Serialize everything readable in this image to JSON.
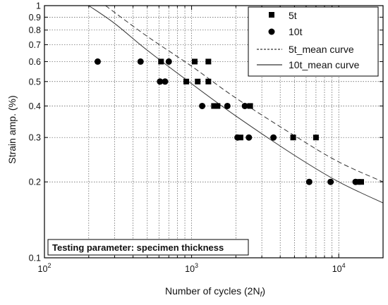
{
  "chart_data": {
    "type": "scatter",
    "xlabel": "Number of cycles (2N",
    "xlabel_sub": "f",
    "xlabel_close": ")",
    "ylabel": "Strain amp. (%)",
    "x_scale": "log",
    "y_scale": "log",
    "xlim": [
      100,
      20000
    ],
    "ylim": [
      0.1,
      1
    ],
    "grid": true,
    "legend_position": "top-right",
    "x_ticks": [
      {
        "value": 100,
        "base": "10",
        "exp": "2"
      },
      {
        "value": 1000,
        "base": "10",
        "exp": "3"
      },
      {
        "value": 10000,
        "base": "10",
        "exp": "4"
      }
    ],
    "y_ticks": [
      {
        "value": 0.1,
        "label": "0.1"
      },
      {
        "value": 0.2,
        "label": "0.2"
      },
      {
        "value": 0.3,
        "label": "0.3"
      },
      {
        "value": 0.4,
        "label": "0.4"
      },
      {
        "value": 0.5,
        "label": "0.5"
      },
      {
        "value": 0.6,
        "label": "0.6"
      },
      {
        "value": 0.7,
        "label": "0.7"
      },
      {
        "value": 0.8,
        "label": "0.8"
      },
      {
        "value": 0.9,
        "label": "0.9"
      },
      {
        "value": 1,
        "label": "1"
      }
    ],
    "series": [
      {
        "name": "5t",
        "marker": "square",
        "points": [
          {
            "x": 620,
            "y": 0.6
          },
          {
            "x": 1050,
            "y": 0.6
          },
          {
            "x": 1300,
            "y": 0.6
          },
          {
            "x": 920,
            "y": 0.5
          },
          {
            "x": 1100,
            "y": 0.5
          },
          {
            "x": 1300,
            "y": 0.5
          },
          {
            "x": 1420,
            "y": 0.4
          },
          {
            "x": 1500,
            "y": 0.4
          },
          {
            "x": 2500,
            "y": 0.4
          },
          {
            "x": 2150,
            "y": 0.3
          },
          {
            "x": 4900,
            "y": 0.3
          },
          {
            "x": 7000,
            "y": 0.3
          },
          {
            "x": 13500,
            "y": 0.2
          },
          {
            "x": 14200,
            "y": 0.2
          }
        ]
      },
      {
        "name": "10t",
        "marker": "circle",
        "points": [
          {
            "x": 230,
            "y": 0.6
          },
          {
            "x": 450,
            "y": 0.6
          },
          {
            "x": 700,
            "y": 0.6
          },
          {
            "x": 610,
            "y": 0.5
          },
          {
            "x": 660,
            "y": 0.5
          },
          {
            "x": 1180,
            "y": 0.4
          },
          {
            "x": 1750,
            "y": 0.4
          },
          {
            "x": 2300,
            "y": 0.4
          },
          {
            "x": 2050,
            "y": 0.3
          },
          {
            "x": 2450,
            "y": 0.3
          },
          {
            "x": 3600,
            "y": 0.3
          },
          {
            "x": 6300,
            "y": 0.2
          },
          {
            "x": 8800,
            "y": 0.2
          },
          {
            "x": 13000,
            "y": 0.2
          }
        ]
      },
      {
        "name": "5t_mean curve",
        "style": "dashed",
        "curve": [
          {
            "x": 260,
            "y": 1.0
          },
          {
            "x": 500,
            "y": 0.755
          },
          {
            "x": 1000,
            "y": 0.575
          },
          {
            "x": 2000,
            "y": 0.43
          },
          {
            "x": 5000,
            "y": 0.305
          },
          {
            "x": 10000,
            "y": 0.24
          },
          {
            "x": 20000,
            "y": 0.2
          }
        ]
      },
      {
        "name": "10t_mean curve",
        "style": "solid",
        "curve": [
          {
            "x": 200,
            "y": 1.0
          },
          {
            "x": 300,
            "y": 0.85
          },
          {
            "x": 500,
            "y": 0.665
          },
          {
            "x": 1000,
            "y": 0.49
          },
          {
            "x": 2000,
            "y": 0.365
          },
          {
            "x": 5000,
            "y": 0.255
          },
          {
            "x": 10000,
            "y": 0.2
          },
          {
            "x": 20000,
            "y": 0.165
          }
        ]
      }
    ],
    "annotation": "Testing parameter: specimen thickness"
  }
}
